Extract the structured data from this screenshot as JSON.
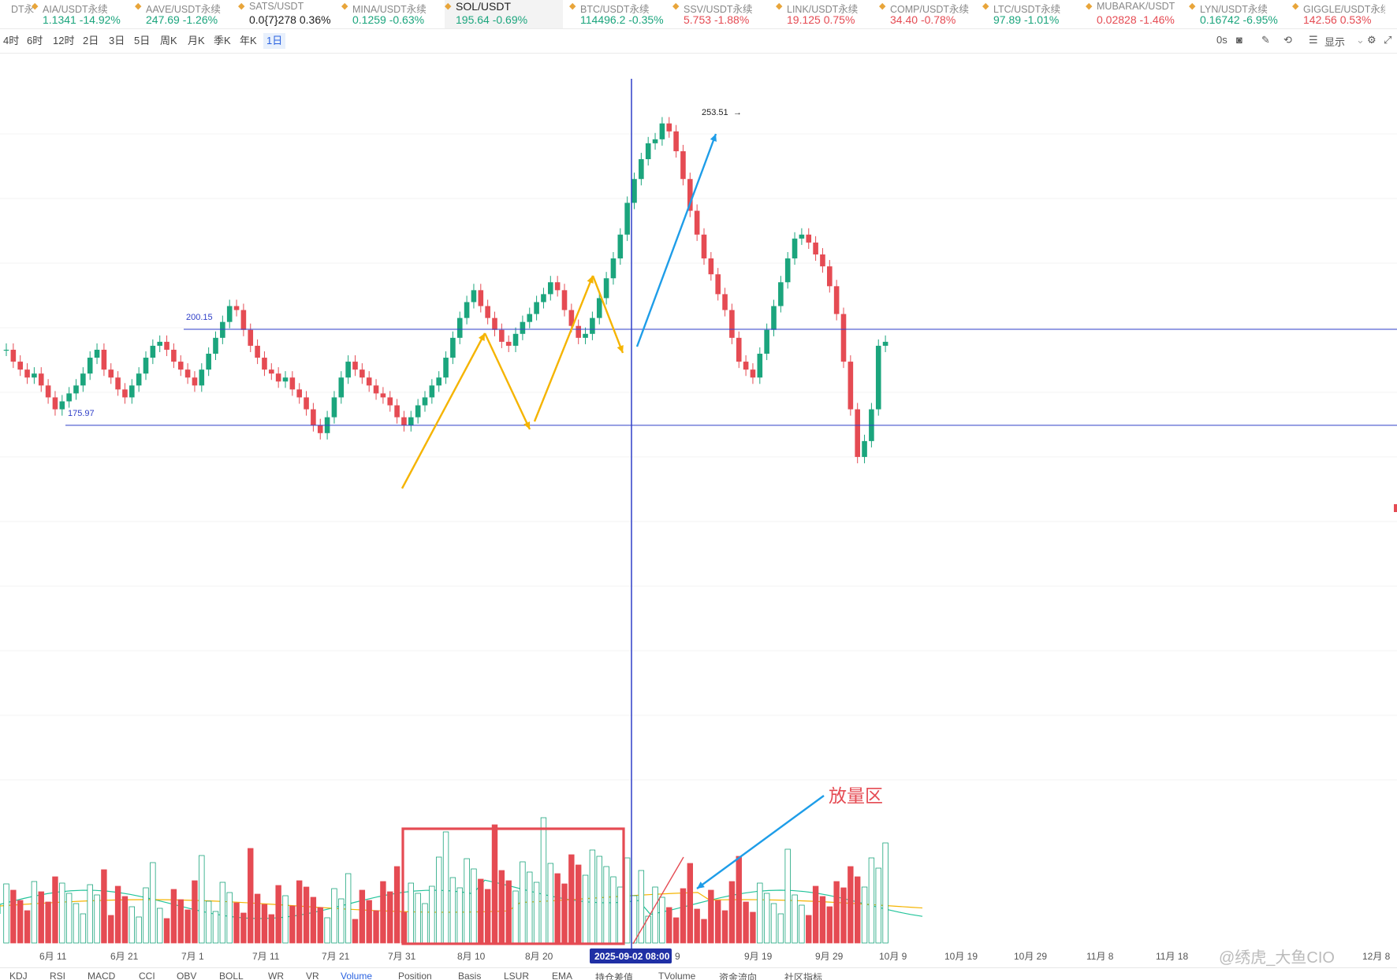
{
  "ticker": [
    {
      "pair": "DT永",
      "price": "",
      "change": "",
      "trend": "neutral"
    },
    {
      "pair": "AIA/USDT永续",
      "price": "1.1341",
      "change": "-14.92%",
      "trend": "up"
    },
    {
      "pair": "AAVE/USDT永续",
      "price": "247.69",
      "change": "-1.26%",
      "trend": "up"
    },
    {
      "pair": "SATS/USDT",
      "price": "0.0{7}278",
      "change": "0.36%",
      "trend": "neutral"
    },
    {
      "pair": "MINA/USDT永续",
      "price": "0.1259",
      "change": "-0.63%",
      "trend": "up"
    },
    {
      "pair": "SOL/USDT",
      "price": "195.64",
      "change": "-0.69%",
      "trend": "up"
    },
    {
      "pair": "BTC/USDT永续",
      "price": "114496.2",
      "change": "-0.35%",
      "trend": "up"
    },
    {
      "pair": "SSV/USDT永续",
      "price": "5.753",
      "change": "-1.88%",
      "trend": "down"
    },
    {
      "pair": "LINK/USDT永续",
      "price": "19.125",
      "change": "0.75%",
      "trend": "down"
    },
    {
      "pair": "COMP/USDT永续",
      "price": "34.40",
      "change": "-0.78%",
      "trend": "down"
    },
    {
      "pair": "LTC/USDT永续",
      "price": "97.89",
      "change": "-1.01%",
      "trend": "up"
    },
    {
      "pair": "MUBARAK/USDT",
      "price": "0.02828",
      "change": "-1.46%",
      "trend": "down"
    },
    {
      "pair": "LYN/USDT永续",
      "price": "0.16742",
      "change": "-6.95%",
      "trend": "up"
    },
    {
      "pair": "GIGGLE/USDT永续",
      "price": "142.56",
      "change": "0.53%",
      "trend": "down"
    }
  ],
  "intervals": [
    "4时",
    "6时",
    "12时",
    "2日",
    "3日",
    "5日",
    "周K",
    "月K",
    "季K",
    "年K",
    "1日"
  ],
  "active_interval": "1日",
  "toolbar_right": {
    "timer": "0s",
    "display_label": "显示"
  },
  "colors": {
    "up": "#1ba57d",
    "down": "#e54b53",
    "line": "#2f3fc8",
    "accent": "#2a62e0",
    "arrow_up": "#f5b400",
    "arrow_blue": "#1e9de8"
  },
  "chart": {
    "price_labels": {
      "high": "253.51",
      "res_line": "200.15",
      "sup_line": "175.97"
    },
    "crosshair_date": "2025-09-02 08:00",
    "x_ticks": [
      "6月 11",
      "6月 21",
      "7月 1",
      "7月 11",
      "7月 21",
      "7月 31",
      "8月 10",
      "8月 20",
      "9",
      "9月 19",
      "9月 29",
      "10月 9",
      "10月 19",
      "10月 29",
      "11月 8",
      "11月 18",
      "12月 8"
    ],
    "annotation": "放量区"
  },
  "watermark": "@绣虎_大鱼CIO",
  "indicator_tabs": [
    "KDJ",
    "RSI",
    "MACD",
    "CCI",
    "OBV",
    "BOLL",
    "WR",
    "VR",
    "Volume",
    "Position",
    "Basis",
    "LSUR",
    "EMA",
    "持仓差值",
    "TVolume",
    "资金流向",
    "社区指标"
  ],
  "active_indicator": "Volume"
}
